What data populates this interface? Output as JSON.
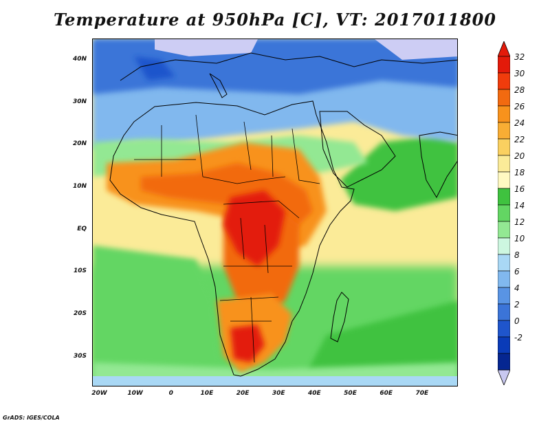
{
  "title": "Temperature at 950hPa [C], VT: 2017011800",
  "credit": "GrADS: IGES/COLA",
  "map": {
    "variable": "Temperature",
    "level": "950hPa",
    "units": "C",
    "valid_time": "2017011800",
    "lon_range": [
      -22,
      80
    ],
    "lat_range": [
      -37,
      45
    ],
    "lat_ticks": [
      {
        "value": 40,
        "label": "40N"
      },
      {
        "value": 30,
        "label": "30N"
      },
      {
        "value": 20,
        "label": "20N"
      },
      {
        "value": 10,
        "label": "10N"
      },
      {
        "value": 0,
        "label": "EQ"
      },
      {
        "value": -10,
        "label": "10S"
      },
      {
        "value": -20,
        "label": "20S"
      },
      {
        "value": -30,
        "label": "30S"
      }
    ],
    "lon_ticks": [
      {
        "value": -20,
        "label": "20W"
      },
      {
        "value": -10,
        "label": "10W"
      },
      {
        "value": 0,
        "label": "0"
      },
      {
        "value": 10,
        "label": "10E"
      },
      {
        "value": 20,
        "label": "20E"
      },
      {
        "value": 30,
        "label": "30E"
      },
      {
        "value": 40,
        "label": "40E"
      },
      {
        "value": 50,
        "label": "50E"
      },
      {
        "value": 60,
        "label": "60E"
      },
      {
        "value": 70,
        "label": "70E"
      }
    ]
  },
  "colorbar": {
    "labels": [
      "32",
      "30",
      "28",
      "26",
      "24",
      "22",
      "20",
      "18",
      "16",
      "14",
      "12",
      "10",
      "8",
      "6",
      "4",
      "2",
      "0",
      "-2"
    ],
    "colors": [
      "#e31a0a",
      "#f03c0c",
      "#f26a10",
      "#f8921c",
      "#f8ad34",
      "#fad060",
      "#fbeb98",
      "#fff9c2",
      "#3fc23f",
      "#63d663",
      "#93e893",
      "#cdf7e0",
      "#a9d8f5",
      "#81b8ee",
      "#5994e4",
      "#3b74d8",
      "#1f55cc",
      "#0a3bb8",
      "#052691"
    ],
    "over_color": "#e31a0a",
    "under_color": "#c8c8f0"
  },
  "palette": {
    "ocean_south": "#3fc23f",
    "ocean_trop": "#fbeb98",
    "cold_north": "#3b74d8",
    "desert": "#81b8ee",
    "sahel": "#f26a10",
    "hot_core": "#e31a0a",
    "cap": "#cdcdf4"
  }
}
